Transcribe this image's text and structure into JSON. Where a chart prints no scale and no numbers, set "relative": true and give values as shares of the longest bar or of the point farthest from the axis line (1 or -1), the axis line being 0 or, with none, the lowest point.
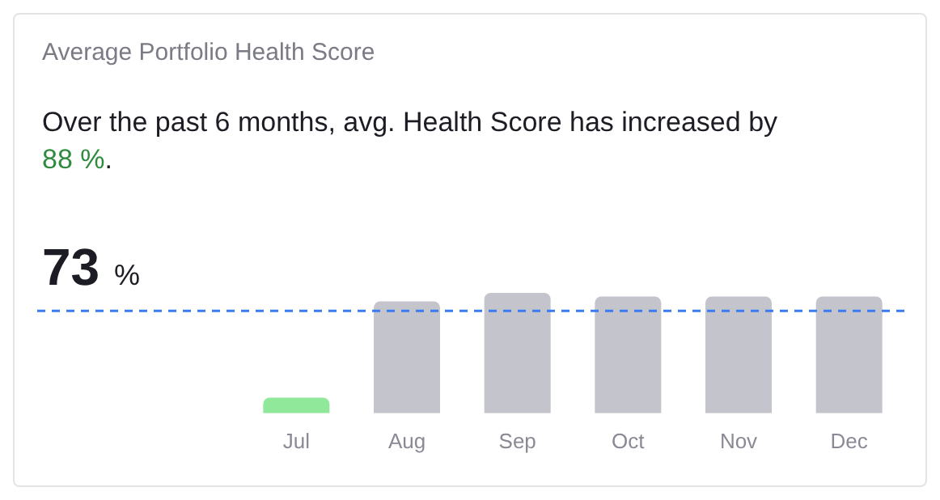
{
  "chart_data": {
    "type": "bar",
    "title": "Average Portfolio Health Score",
    "subtitle": "Over the past 6 months, avg. Health Score has increased by 88 %.",
    "categories": [
      "Jul",
      "Aug",
      "Sep",
      "Oct",
      "Nov",
      "Dec"
    ],
    "values": [
      0.13,
      0.93,
      1,
      0.97,
      0.97,
      0.97
    ],
    "colors": [
      "#90e89a",
      "#c4c4cc",
      "#c4c4cc",
      "#c4c4cc",
      "#c4c4cc",
      "#c4c4cc"
    ],
    "relative": true,
    "grid": false,
    "legend": false,
    "annotations": [
      "73 %"
    ],
    "ref_lines": [
      {
        "axis": "y",
        "value": 0.85,
        "color": "#3b7bf0",
        "line_style": "dashed"
      }
    ]
  }
}
